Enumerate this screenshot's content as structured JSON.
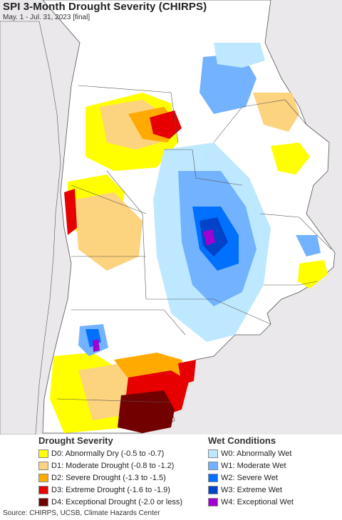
{
  "header": {
    "title": "SPI 3-Month Drought Severity (CHIRPS)",
    "subtitle": "May. 1 - Jul. 31, 2023 [final]"
  },
  "legend": {
    "drought": {
      "heading": "Drought Severity",
      "items": [
        {
          "label": "D0: Abnormally Dry (-0.5 to -0.7)",
          "color": "#ffff00"
        },
        {
          "label": "D1: Moderate Drought (-0.8 to -1.2)",
          "color": "#fcd37f"
        },
        {
          "label": "D2: Severe Drought (-1.3 to -1.5)",
          "color": "#ffaa00"
        },
        {
          "label": "D3: Extreme Drought (-1.6 to -1.9)",
          "color": "#e60000"
        },
        {
          "label": "D4: Exceptional Drought (-2.0 or less)",
          "color": "#730000"
        }
      ]
    },
    "wet": {
      "heading": "Wet Conditions",
      "items": [
        {
          "label": "W0: Abnormally Wet",
          "color": "#bee8ff"
        },
        {
          "label": "W1: Moderate Wet",
          "color": "#73b2ff"
        },
        {
          "label": "W2: Severe Wet",
          "color": "#0070ff"
        },
        {
          "label": "W3: Extreme Wet",
          "color": "#0042c8"
        },
        {
          "label": "W4: Exceptional Wet",
          "color": "#a000d2"
        }
      ]
    }
  },
  "footer": {
    "source": "Source: CHIRPS, UCSB, Climate Hazards Center"
  }
}
